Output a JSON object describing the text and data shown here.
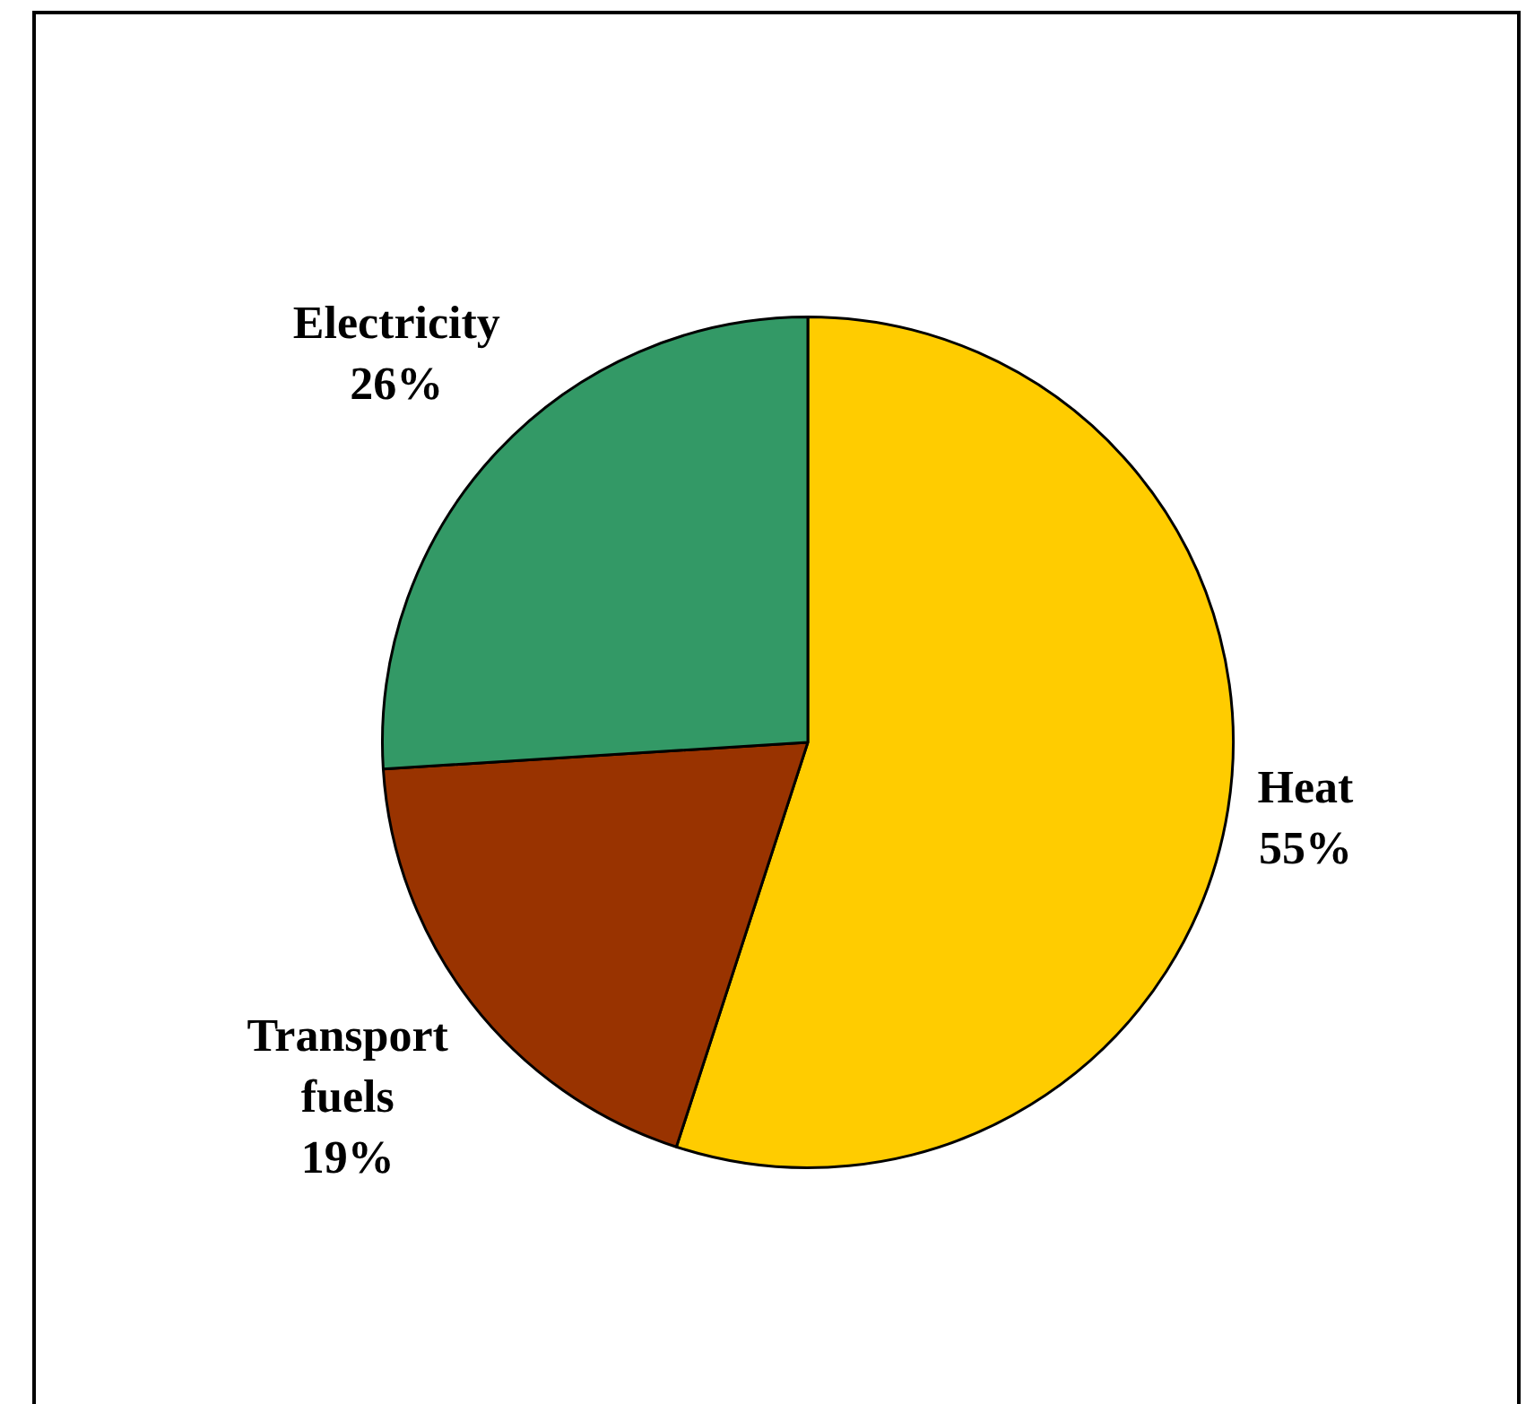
{
  "chart_data": {
    "type": "pie",
    "categories": [
      "Heat",
      "Transport fuels",
      "Electricity"
    ],
    "values": [
      55,
      19,
      26
    ],
    "colors": [
      "#ffcc00",
      "#993300",
      "#339966"
    ],
    "value_labels": [
      "55%",
      "19%",
      "26%"
    ],
    "legend": false
  }
}
